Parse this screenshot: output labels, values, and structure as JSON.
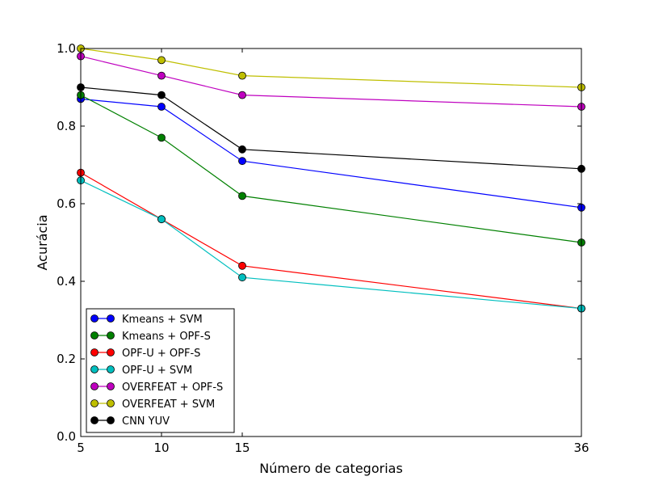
{
  "chart_data": {
    "type": "line",
    "title": "",
    "xlabel": "Número de categorias",
    "ylabel": "Acurácia",
    "x": [
      5,
      10,
      15,
      36
    ],
    "xlim": [
      5,
      36
    ],
    "ylim": [
      0.0,
      1.0
    ],
    "x_ticks": [
      5,
      10,
      15,
      36
    ],
    "x_tick_labels": [
      "5",
      "10",
      "15",
      "36"
    ],
    "y_ticks": [
      0.0,
      0.2,
      0.4,
      0.6,
      0.8,
      1.0
    ],
    "y_tick_labels": [
      "0.0",
      "0.2",
      "0.4",
      "0.6",
      "0.8",
      "1.0"
    ],
    "grid": false,
    "legend_position": "lower-left",
    "series": [
      {
        "name": "Kmeans + SVM",
        "color": "#0000ff",
        "values": [
          0.87,
          0.85,
          0.71,
          0.59
        ]
      },
      {
        "name": "Kmeans + OPF-S",
        "color": "#008000",
        "values": [
          0.88,
          0.77,
          0.62,
          0.5
        ]
      },
      {
        "name": "OPF-U + OPF-S",
        "color": "#ff0000",
        "values": [
          0.68,
          0.56,
          0.44,
          0.33
        ]
      },
      {
        "name": "OPF-U + SVM",
        "color": "#00bfbf",
        "values": [
          0.66,
          0.56,
          0.41,
          0.33
        ]
      },
      {
        "name": "OVERFEAT + OPF-S",
        "color": "#bf00bf",
        "values": [
          0.98,
          0.93,
          0.88,
          0.85
        ]
      },
      {
        "name": "OVERFEAT + SVM",
        "color": "#bfbf00",
        "values": [
          1.0,
          0.97,
          0.93,
          0.9
        ]
      },
      {
        "name": "CNN YUV",
        "color": "#000000",
        "values": [
          0.9,
          0.88,
          0.74,
          0.69
        ]
      }
    ]
  }
}
